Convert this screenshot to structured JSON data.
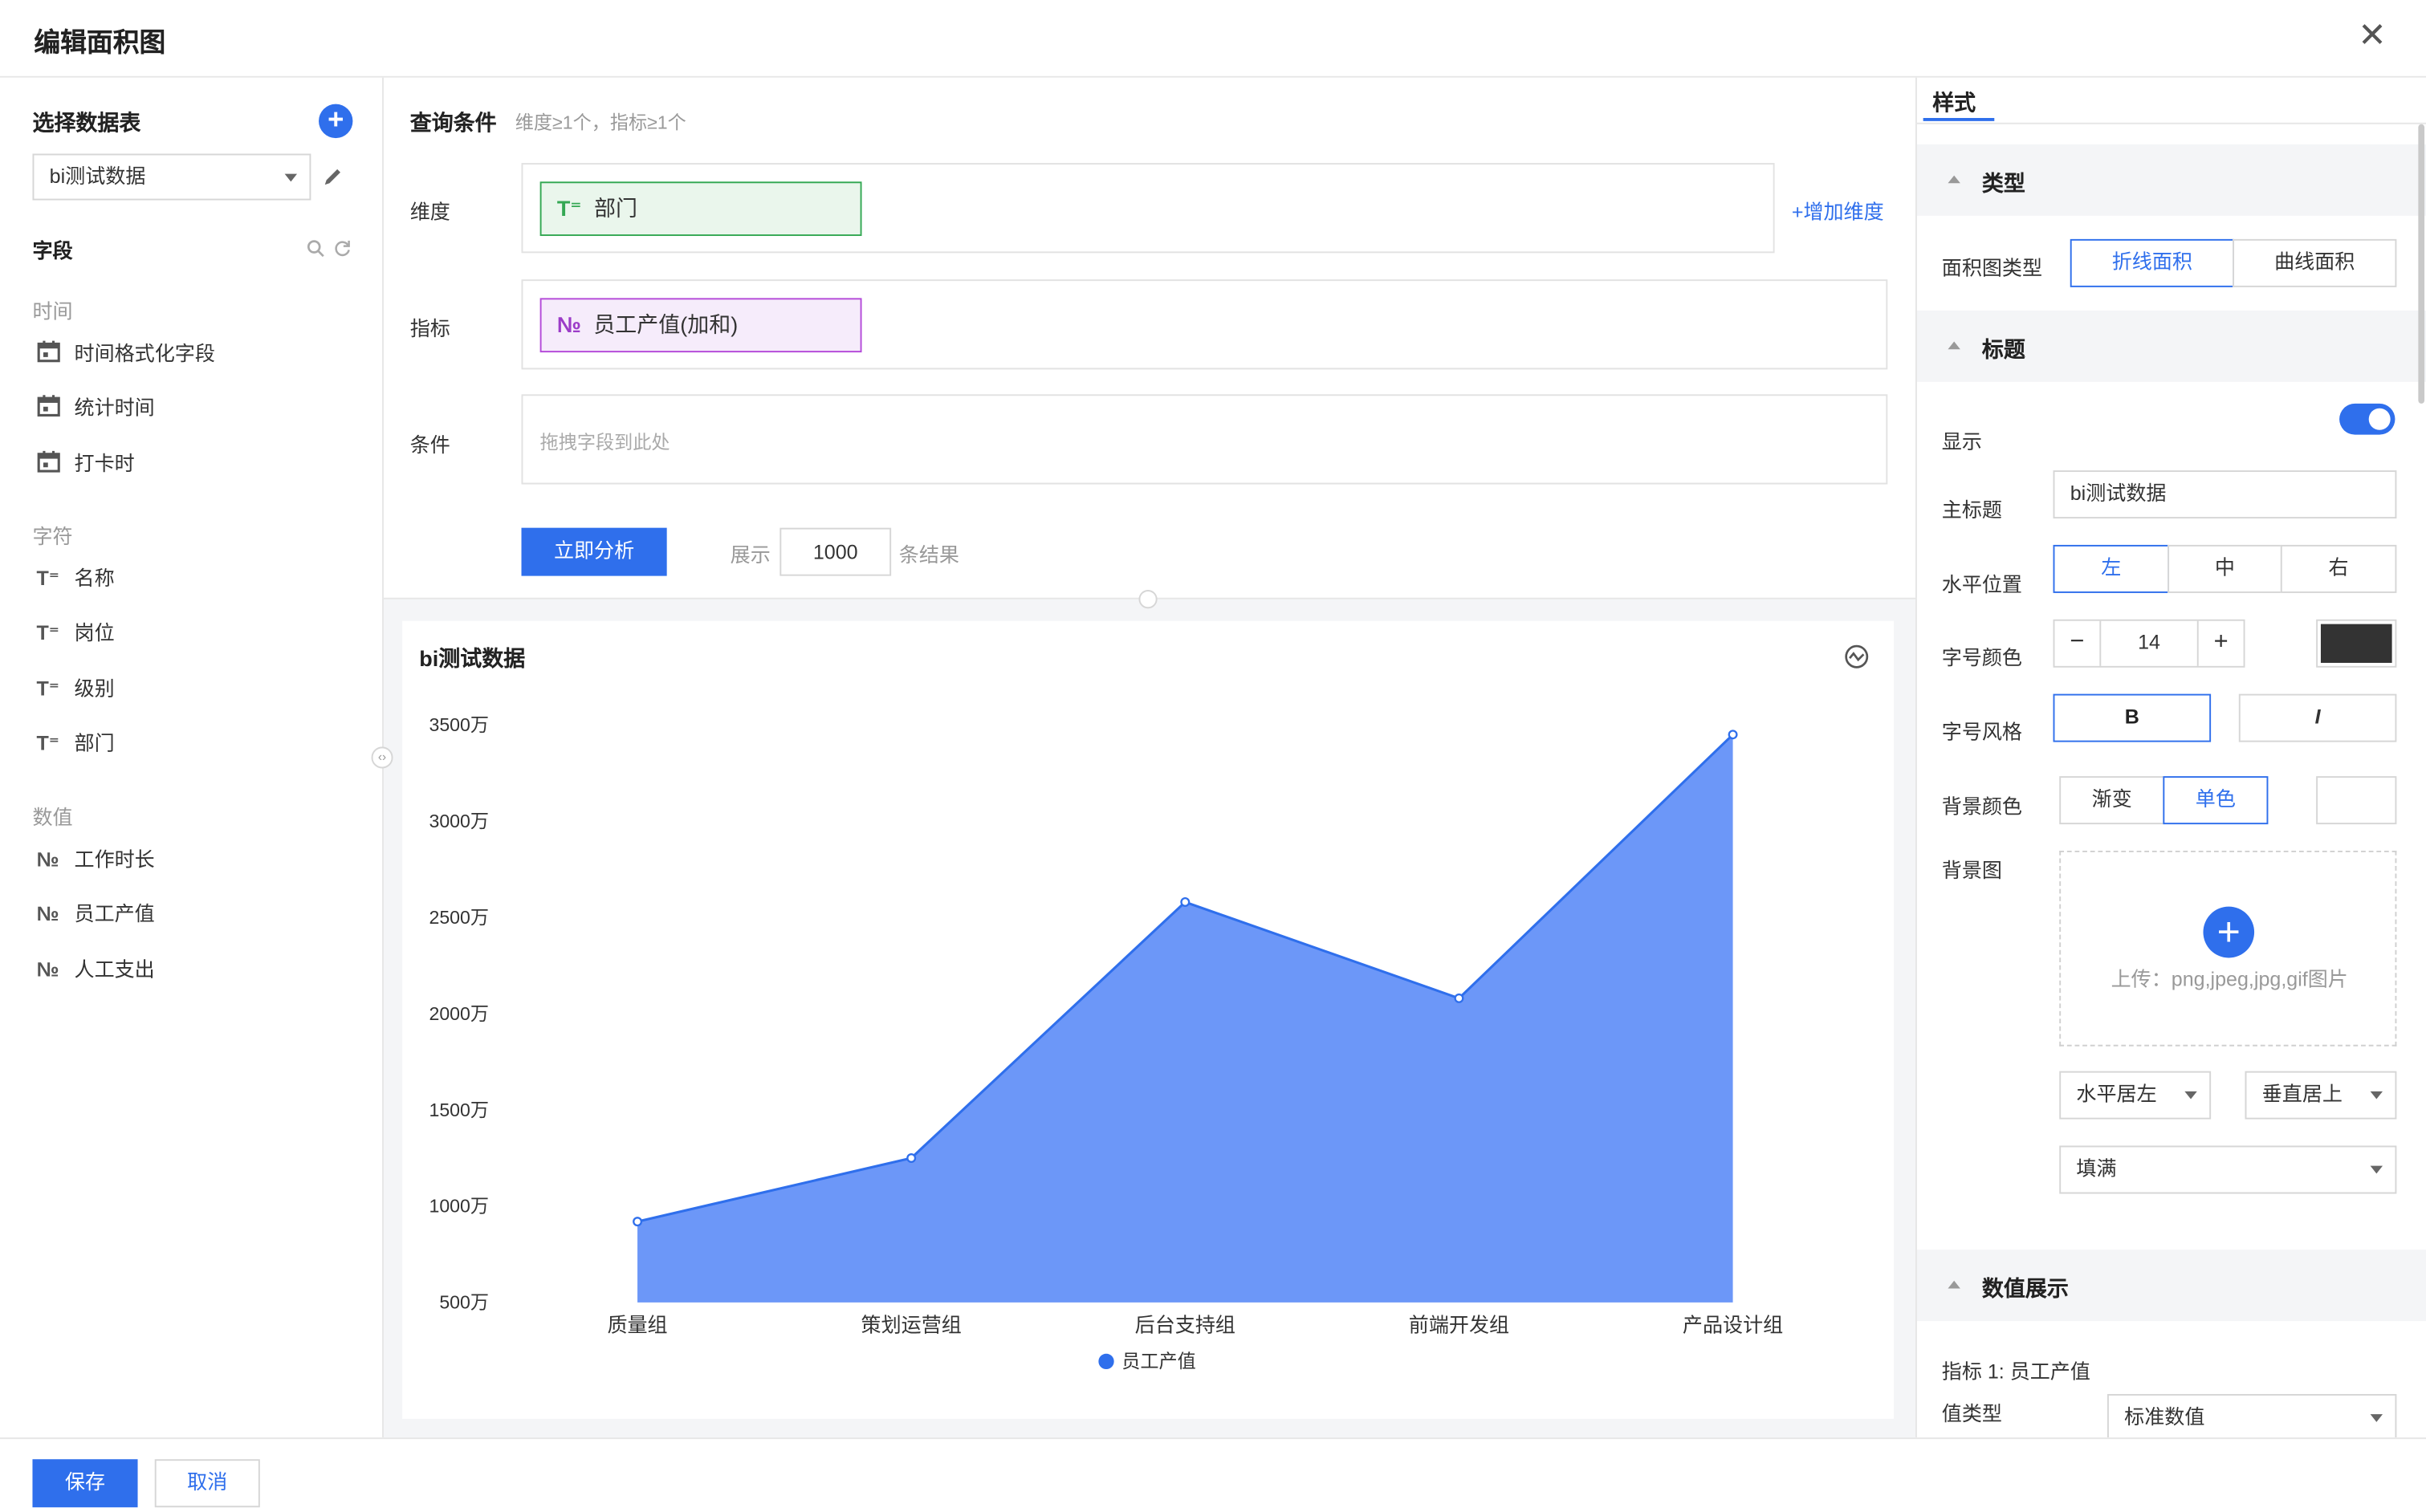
{
  "dialog": {
    "title": "编辑面积图",
    "close_glyph": "✕"
  },
  "left": {
    "section_title": "选择数据表",
    "add_glyph": "+",
    "dataset_select": "bi测试数据",
    "fields_title": "字段",
    "groups": [
      {
        "label": "时间",
        "icon": "calendar-icon",
        "items": [
          "时间格式化字段",
          "统计时间",
          "打卡时"
        ]
      },
      {
        "label": "字符",
        "icon": "text-type-icon",
        "glyph": "T⁼",
        "items": [
          "名称",
          "岗位",
          "级别",
          "部门"
        ]
      },
      {
        "label": "数值",
        "icon": "number-type-icon",
        "glyph": "№",
        "items": [
          "工作时长",
          "员工产值",
          "人工支出"
        ]
      }
    ]
  },
  "query": {
    "title": "查询条件",
    "hint": "维度≥1个，指标≥1个",
    "dimension_label": "维度",
    "dimension_chip": "部门",
    "dimension_glyph": "T⁼",
    "add_dimension": "+增加维度",
    "metric_label": "指标",
    "metric_chip": "员工产值(加和)",
    "metric_glyph": "№",
    "condition_label": "条件",
    "condition_placeholder": "拖拽字段到此处",
    "analyze_button": "立即分析",
    "show_prefix": "展示",
    "show_count": "1000",
    "show_suffix": "条结果"
  },
  "chart_data": {
    "type": "area",
    "title": "bi测试数据",
    "categories": [
      "质量组",
      "策划运营组",
      "后台支持组",
      "前端开发组",
      "产品设计组"
    ],
    "series": [
      {
        "name": "员工产值",
        "values": [
          9200000,
          12500000,
          25800000,
          20800000,
          34500000
        ]
      }
    ],
    "yticks": [
      "3500万",
      "3000万",
      "2500万",
      "2000万",
      "1500万",
      "1000万",
      "500万"
    ],
    "ylim": [
      5000000,
      35000000
    ],
    "legend": "bottom",
    "grid": false,
    "colors": {
      "fill": "#6c97f8",
      "line": "#2f6fec"
    }
  },
  "style": {
    "tab": "样式",
    "type_section": "类型",
    "area_type_label": "面积图类型",
    "area_types": [
      "折线面积",
      "曲线面积"
    ],
    "title_section": "标题",
    "show_label": "显示",
    "main_title_label": "主标题",
    "main_title_value": "bi测试数据",
    "halign_label": "水平位置",
    "halign_options": [
      "左",
      "中",
      "右"
    ],
    "font_label": "字号颜色",
    "font_size": "14",
    "font_color": "#333333",
    "font_style_label": "字号风格",
    "bold_label": "B",
    "italic_label": "I",
    "bg_color_label": "背景颜色",
    "bg_modes": [
      "渐变",
      "单色"
    ],
    "bg_image_label": "背景图",
    "upload_text": "上传：png,jpeg,jpg,gif图片",
    "h_align_select": "水平居左",
    "v_align_select": "垂直居上",
    "fill_select": "填满",
    "value_section": "数值展示",
    "metric_note": "指标 1: 员工产值",
    "value_type_label": "值类型",
    "value_type_select": "标准数值"
  },
  "footer": {
    "save": "保存",
    "cancel": "取消"
  },
  "colors": {
    "primary": "#2f6fec",
    "dimension": "#34a853",
    "metric": "#9c3cc8"
  }
}
